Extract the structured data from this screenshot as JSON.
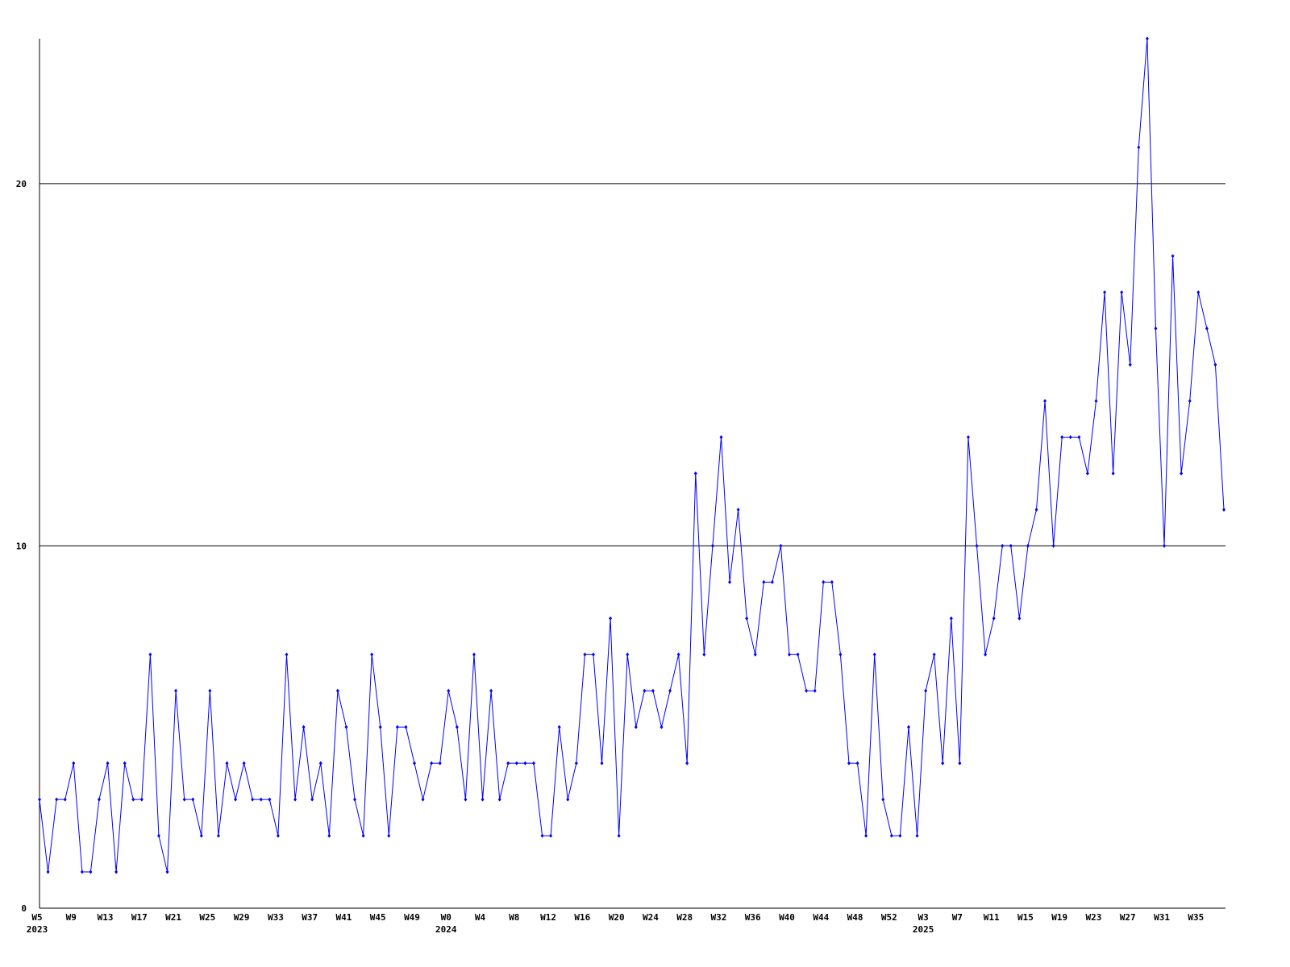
{
  "chart_data": {
    "type": "line",
    "categories": [
      "W5",
      null,
      null,
      null,
      "W9",
      null,
      null,
      null,
      "W13",
      null,
      null,
      null,
      "W17",
      null,
      null,
      null,
      "W21",
      null,
      null,
      null,
      "W25",
      null,
      null,
      null,
      "W29",
      null,
      null,
      null,
      "W33",
      null,
      null,
      null,
      "W37",
      null,
      null,
      null,
      "W41",
      null,
      null,
      null,
      "W45",
      null,
      null,
      null,
      "W49",
      null,
      null,
      null,
      "W0",
      null,
      null,
      null,
      "W4",
      null,
      null,
      null,
      "W8",
      null,
      null,
      null,
      "W12",
      null,
      null,
      null,
      "W16",
      null,
      null,
      null,
      "W20",
      null,
      null,
      null,
      "W24",
      null,
      null,
      null,
      "W28",
      null,
      null,
      null,
      "W32",
      null,
      null,
      null,
      "W36",
      null,
      null,
      null,
      "W40",
      null,
      null,
      null,
      "W44",
      null,
      null,
      null,
      "W48",
      null,
      null,
      null,
      "W52",
      null,
      null,
      null,
      "W3",
      null,
      null,
      null,
      "W7",
      null,
      null,
      null,
      "W11",
      null,
      null,
      null,
      "W15",
      null,
      null,
      null,
      "W19",
      null,
      null,
      null,
      "W23",
      null,
      null,
      null,
      "W27",
      null,
      null,
      null,
      "W31",
      null,
      null,
      null,
      "W35",
      null,
      null,
      null
    ],
    "category_years": [
      "2023",
      null,
      null,
      null,
      null,
      null,
      null,
      null,
      null,
      null,
      null,
      null,
      null,
      null,
      null,
      null,
      null,
      null,
      null,
      null,
      null,
      null,
      null,
      null,
      null,
      null,
      null,
      null,
      null,
      null,
      null,
      null,
      null,
      null,
      null,
      null,
      null,
      null,
      null,
      null,
      null,
      null,
      null,
      null,
      null,
      null,
      null,
      null,
      "2024",
      null,
      null,
      null,
      null,
      null,
      null,
      null,
      null,
      null,
      null,
      null,
      null,
      null,
      null,
      null,
      null,
      null,
      null,
      null,
      null,
      null,
      null,
      null,
      null,
      null,
      null,
      null,
      null,
      null,
      null,
      null,
      null,
      null,
      null,
      null,
      null,
      null,
      null,
      null,
      null,
      null,
      null,
      null,
      null,
      null,
      null,
      null,
      null,
      null,
      null,
      null,
      null,
      null,
      null,
      null,
      "2025",
      null,
      null,
      null,
      null,
      null,
      null,
      null,
      null,
      null,
      null,
      null,
      null,
      null,
      null,
      null,
      null,
      null,
      null,
      null,
      null,
      null,
      null,
      null,
      null,
      null,
      null,
      null,
      null,
      null,
      null,
      null,
      null,
      null,
      null
    ],
    "series": [
      {
        "color": "#0000ff",
        "values": [
          3,
          1,
          3,
          3,
          4,
          1,
          1,
          3,
          4,
          1,
          4,
          3,
          3,
          7,
          2,
          1,
          6,
          3,
          3,
          2,
          6,
          2,
          4,
          3,
          4,
          3,
          3,
          3,
          2,
          7,
          3,
          5,
          3,
          4,
          2,
          6,
          5,
          3,
          2,
          7,
          5,
          2,
          5,
          5,
          4,
          3,
          4,
          4,
          6,
          5,
          3,
          7,
          3,
          6,
          3,
          4,
          4,
          4,
          4,
          2,
          2,
          5,
          3,
          4,
          7,
          7,
          4,
          8,
          2,
          7,
          5,
          6,
          6,
          5,
          6,
          7,
          4,
          12,
          7,
          10,
          13,
          9,
          11,
          8,
          7,
          9,
          9,
          10,
          7,
          7,
          6,
          6,
          9,
          9,
          7,
          4,
          4,
          2,
          7,
          3,
          2,
          2,
          5,
          2,
          6,
          7,
          4,
          8,
          4,
          13,
          10,
          7,
          8,
          10,
          10,
          8,
          10,
          11,
          14,
          10,
          13,
          13,
          13,
          12,
          14,
          17,
          12,
          17,
          15,
          21,
          24,
          16,
          10,
          18,
          12,
          14,
          17,
          16,
          15,
          11
        ]
      }
    ],
    "ylim": [
      0,
      24
    ],
    "yticks": [
      0,
      10,
      20
    ],
    "grid": true
  }
}
